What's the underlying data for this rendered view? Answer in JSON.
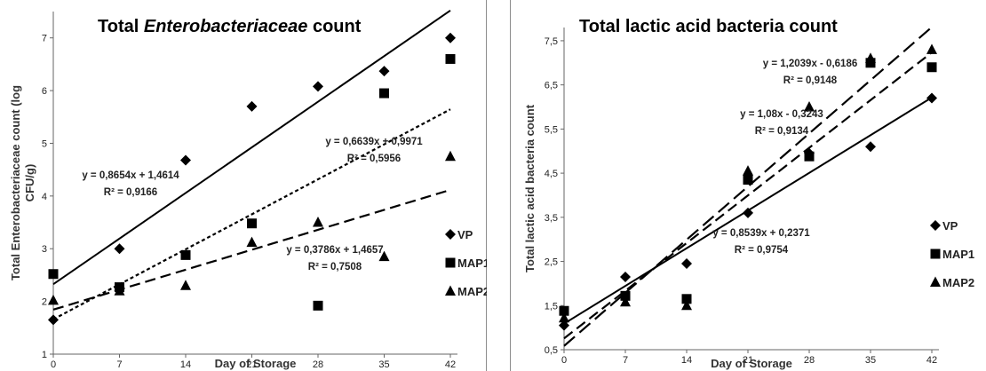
{
  "chart_data": [
    {
      "type": "scatter",
      "title_prefix": "Total ",
      "title_italic": "Enterobacteriaceae",
      "title_suffix": " count",
      "xlabel": "Day of Storage",
      "ylabel_line1": "Total Enterobacteriaceae count (log",
      "ylabel_line2": "CFU/g)",
      "x_ticks": [
        0,
        7,
        14,
        21,
        28,
        35,
        42
      ],
      "y_ticks": [
        1,
        2,
        3,
        4,
        5,
        6,
        7
      ],
      "y_tick_labels": [
        "1",
        "2",
        "3",
        "4",
        "5",
        "6",
        "7"
      ],
      "xlim": [
        0,
        42
      ],
      "ylim": [
        1,
        7.5
      ],
      "legend_position": "right",
      "series": [
        {
          "name": "VP",
          "marker": "diamond",
          "line_style": "solid",
          "x": [
            0,
            7,
            14,
            21,
            28,
            35,
            42
          ],
          "y": [
            1.65,
            3.0,
            4.68,
            5.7,
            6.08,
            6.37,
            7.0
          ],
          "trend": {
            "slope": 0.8654,
            "intercept": 1.4614
          },
          "equation": "y = 0,8654x + 1,4614",
          "r2": "R² = 0,9166"
        },
        {
          "name": "MAP1",
          "marker": "square",
          "line_style": "dotted",
          "x": [
            0,
            7,
            14,
            21,
            28,
            35,
            42
          ],
          "y": [
            2.52,
            2.27,
            2.88,
            3.48,
            1.92,
            5.95,
            6.6
          ],
          "trend": {
            "slope": 0.6639,
            "intercept": 0.9971
          },
          "equation": "y = 0,6639x + 0,9971",
          "r2": "R² = 0,5956"
        },
        {
          "name": "MAP2",
          "marker": "triangle",
          "line_style": "dashed",
          "x": [
            0,
            7,
            14,
            21,
            28,
            35,
            42
          ],
          "y": [
            2.02,
            2.2,
            2.3,
            3.12,
            3.5,
            2.85,
            4.75
          ],
          "trend": {
            "slope": 0.3786,
            "intercept": 1.4657
          },
          "equation": "y = 0,3786x + 1,4657",
          "r2": "R² = 0,7508"
        }
      ]
    },
    {
      "type": "scatter",
      "title_prefix": "Total lactic acid bacteria count",
      "title_italic": "",
      "title_suffix": "",
      "xlabel": "Day of Storage",
      "ylabel_line1": "Total lactic acid bacteria count",
      "ylabel_line2": "",
      "x_ticks": [
        0,
        7,
        14,
        21,
        28,
        35,
        42
      ],
      "y_ticks": [
        0.5,
        1.5,
        2.5,
        3.5,
        4.5,
        5.5,
        6.5,
        7.5
      ],
      "y_tick_labels": [
        "0,5",
        "1,5",
        "2,5",
        "3,5",
        "4,5",
        "5,5",
        "6,5",
        "7,5"
      ],
      "xlim": [
        0,
        42
      ],
      "ylim": [
        0.5,
        7.8
      ],
      "legend_position": "right",
      "series": [
        {
          "name": "VP",
          "marker": "diamond",
          "line_style": "solid",
          "x": [
            0,
            7,
            14,
            21,
            28,
            35,
            42
          ],
          "y": [
            1.05,
            2.15,
            2.45,
            3.6,
            4.95,
            5.1,
            6.2
          ],
          "trend": {
            "slope": 0.8539,
            "intercept": 0.2371
          },
          "equation": "y = 0,8539x + 0,2371",
          "r2": "R² = 0,9754"
        },
        {
          "name": "MAP1",
          "marker": "square",
          "line_style": "dashed",
          "x": [
            0,
            7,
            14,
            21,
            28,
            35,
            42
          ],
          "y": [
            1.38,
            1.72,
            1.65,
            4.35,
            4.88,
            7.0,
            6.9
          ],
          "trend": {
            "slope": 1.08,
            "intercept": -0.3243
          },
          "equation": "y = 1,08x - 0,3243",
          "r2": "R² = 0,9134"
        },
        {
          "name": "MAP2",
          "marker": "triangle",
          "line_style": "longdash",
          "x": [
            0,
            7,
            14,
            21,
            28,
            35,
            42
          ],
          "y": [
            1.22,
            1.58,
            1.5,
            4.55,
            6.0,
            7.1,
            7.3
          ],
          "trend": {
            "slope": 1.2039,
            "intercept": -0.6186
          },
          "equation": "y = 1,2039x - 0,6186",
          "r2": "R² = 0,9148"
        }
      ]
    }
  ]
}
